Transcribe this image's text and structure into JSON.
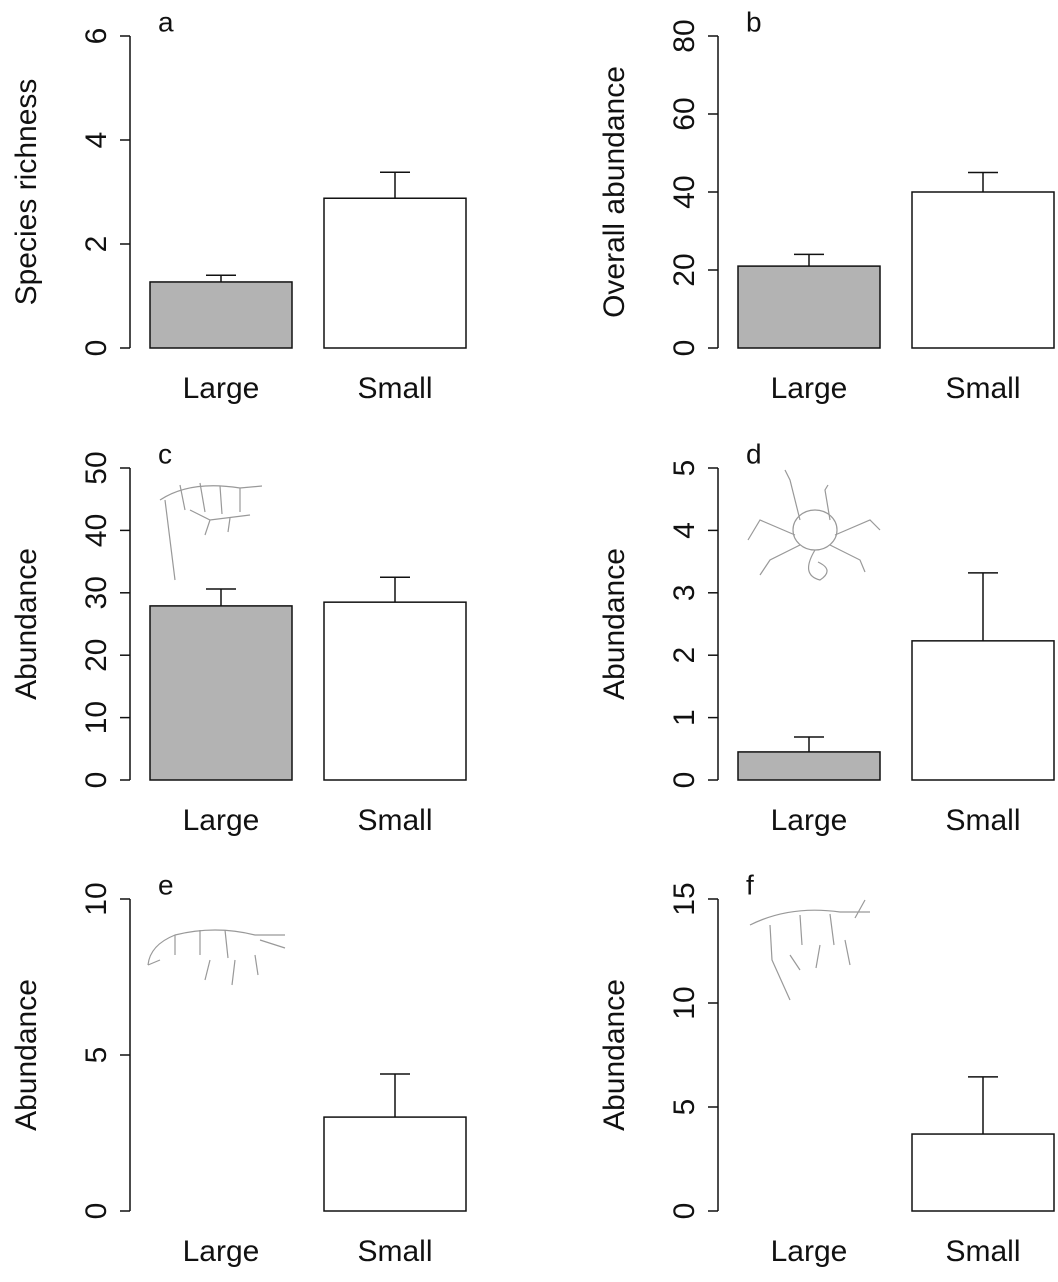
{
  "chart_data": [
    {
      "type": "bar",
      "label": "a",
      "ylabel": "Species richness",
      "categories": [
        "Large",
        "Small"
      ],
      "values": [
        1.27,
        2.88
      ],
      "errors": [
        0.13,
        0.5
      ],
      "colors": [
        "#b3b3b3",
        "#ffffff"
      ],
      "ylim": [
        0,
        6
      ],
      "yticks": [
        0,
        2,
        4,
        6
      ]
    },
    {
      "type": "bar",
      "label": "b",
      "ylabel": "Overall abundance",
      "categories": [
        "Large",
        "Small"
      ],
      "values": [
        21,
        40
      ],
      "errors": [
        3,
        5
      ],
      "colors": [
        "#b3b3b3",
        "#ffffff"
      ],
      "ylim": [
        0,
        80
      ],
      "yticks": [
        0,
        20,
        40,
        60,
        80
      ]
    },
    {
      "type": "bar",
      "label": "c",
      "ylabel": "Abundance",
      "categories": [
        "Large",
        "Small"
      ],
      "values": [
        27.9,
        28.5
      ],
      "errors": [
        2.7,
        4
      ],
      "colors": [
        "#b3b3b3",
        "#ffffff"
      ],
      "ylim": [
        0,
        50
      ],
      "yticks": [
        0,
        10,
        20,
        30,
        40,
        50
      ]
    },
    {
      "type": "bar",
      "label": "d",
      "ylabel": "Abundance",
      "categories": [
        "Large",
        "Small"
      ],
      "values": [
        0.45,
        2.23
      ],
      "errors": [
        0.24,
        1.09
      ],
      "colors": [
        "#b3b3b3",
        "#ffffff"
      ],
      "ylim": [
        0,
        5
      ],
      "yticks": [
        0,
        1,
        2,
        3,
        4,
        5
      ]
    },
    {
      "type": "bar",
      "label": "e",
      "ylabel": "Abundance",
      "categories": [
        "Large",
        "Small"
      ],
      "values": [
        0,
        3.01
      ],
      "errors": [
        null,
        1.38
      ],
      "colors": [
        "#b3b3b3",
        "#ffffff"
      ],
      "ylim": [
        0,
        10
      ],
      "yticks": [
        0,
        5,
        10
      ]
    },
    {
      "type": "bar",
      "label": "f",
      "ylabel": "Abundance",
      "categories": [
        "Large",
        "Small"
      ],
      "values": [
        0,
        3.7
      ],
      "errors": [
        null,
        2.75
      ],
      "colors": [
        "#b3b3b3",
        "#ffffff"
      ],
      "ylim": [
        0,
        15
      ],
      "yticks": [
        0,
        5,
        10,
        15
      ]
    }
  ]
}
